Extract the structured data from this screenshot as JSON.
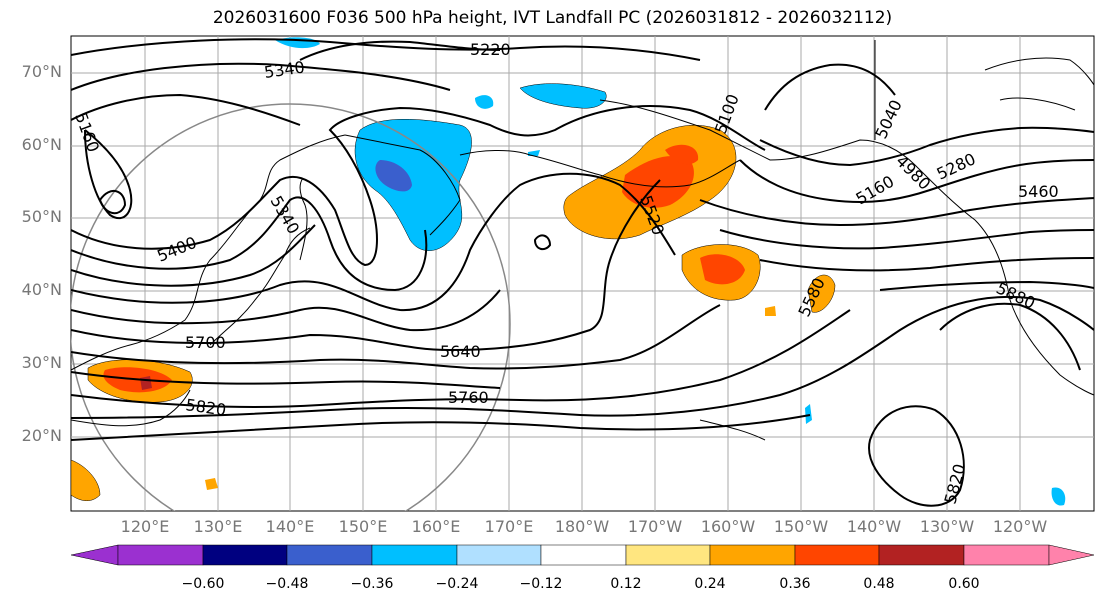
{
  "title": "2026031600 F036 500 hPa height, IVT Landfall PC (2026031812 - 2026032112)",
  "lat_labels": [
    "70°N",
    "60°N",
    "50°N",
    "40°N",
    "30°N",
    "20°N"
  ],
  "lon_labels": [
    "120°E",
    "130°E",
    "140°E",
    "150°E",
    "160°E",
    "170°E",
    "180°W",
    "170°W",
    "160°W",
    "150°W",
    "140°W",
    "130°W",
    "120°W"
  ],
  "contour_labels": [
    "5220",
    "5340",
    "5160",
    "5100",
    "5040",
    "4980",
    "5160",
    "5280",
    "5460",
    "5340",
    "5400",
    "5520",
    "5580",
    "5700",
    "5640",
    "5760",
    "5820",
    "5880",
    "5820"
  ],
  "colorbar": {
    "ticks": [
      "−0.60",
      "−0.48",
      "−0.36",
      "−0.24",
      "−0.12",
      "0.12",
      "0.24",
      "0.36",
      "0.48",
      "0.60"
    ],
    "colors": [
      "#9b30d0",
      "#000080",
      "#3a5fcd",
      "#00bfff",
      "#b0e0ff",
      "#ffffff",
      "#ffe680",
      "#ffa500",
      "#ff4500",
      "#b22222",
      "#ff82ab"
    ]
  },
  "shading_colors": {
    "neg_light": "#00bfff",
    "neg_dark": "#3a5fcd",
    "pos_light": "#ffa500",
    "pos_mid": "#ff4500",
    "pos_dark": "#b22222"
  }
}
